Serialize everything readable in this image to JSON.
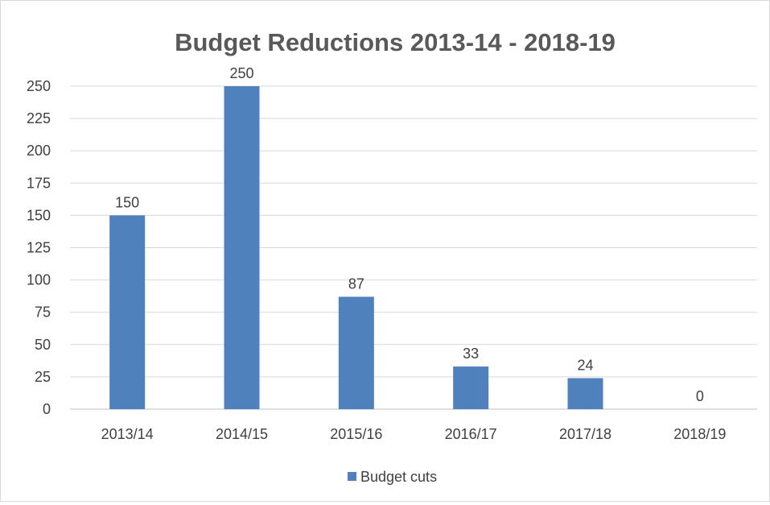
{
  "chart_data": {
    "type": "bar",
    "title": "Budget Reductions 2013-14 - 2018-19",
    "xlabel": "",
    "ylabel": "",
    "categories": [
      "2013/14",
      "2014/15",
      "2015/16",
      "2016/17",
      "2017/18",
      "2018/19"
    ],
    "series": [
      {
        "name": "Budget cuts",
        "values": [
          150,
          250,
          87,
          33,
          24,
          0
        ],
        "color": "#4f81bd"
      }
    ],
    "ylim": [
      0,
      250
    ],
    "yticks": [
      0,
      25,
      50,
      75,
      100,
      125,
      150,
      175,
      200,
      225,
      250
    ],
    "data_labels": [
      "150",
      "250",
      "87",
      "33",
      "24",
      "0"
    ],
    "grid": true,
    "legend": "bottom"
  }
}
